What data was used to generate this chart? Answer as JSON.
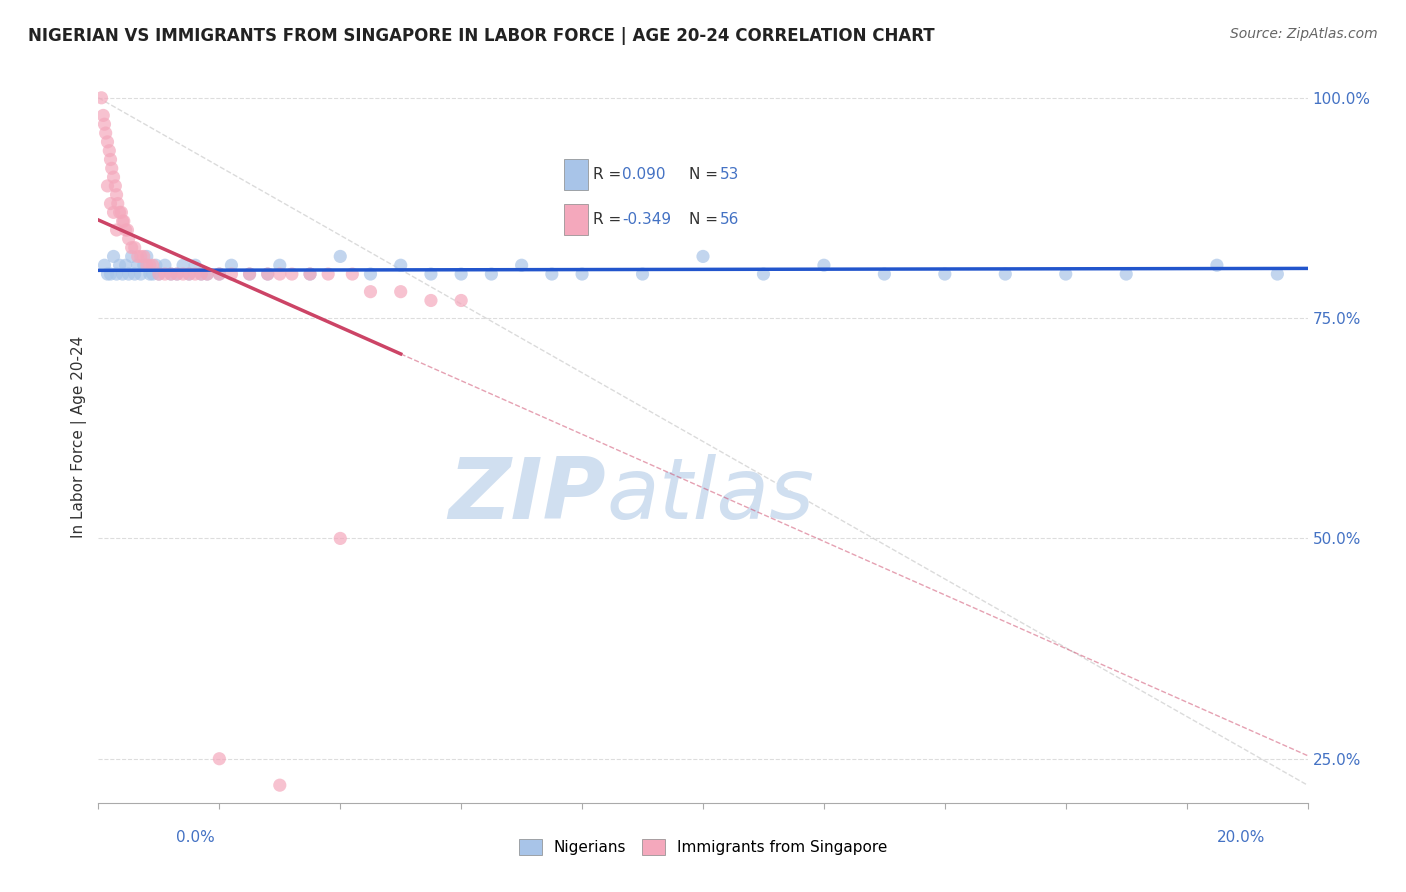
{
  "title": "NIGERIAN VS IMMIGRANTS FROM SINGAPORE IN LABOR FORCE | AGE 20-24 CORRELATION CHART",
  "source": "Source: ZipAtlas.com",
  "ylabel": "In Labor Force | Age 20-24",
  "xmin": 0.0,
  "xmax": 20.0,
  "ymin": 20.0,
  "ymax": 103.0,
  "yticks": [
    25.0,
    50.0,
    75.0,
    100.0
  ],
  "ytick_labels": [
    "25.0%",
    "50.0%",
    "75.0%",
    "100.0%"
  ],
  "nigerian_R": 0.09,
  "nigerian_N": 53,
  "singapore_R": -0.349,
  "singapore_N": 56,
  "nigerian_x": [
    0.1,
    0.15,
    0.2,
    0.25,
    0.3,
    0.35,
    0.4,
    0.45,
    0.5,
    0.55,
    0.6,
    0.65,
    0.7,
    0.75,
    0.8,
    0.85,
    0.9,
    0.95,
    1.0,
    1.1,
    1.2,
    1.3,
    1.4,
    1.5,
    1.6,
    1.7,
    1.8,
    2.0,
    2.2,
    2.5,
    2.8,
    3.0,
    3.5,
    4.0,
    4.5,
    5.0,
    5.5,
    6.0,
    6.5,
    7.0,
    7.5,
    8.0,
    9.0,
    10.0,
    11.0,
    12.0,
    13.0,
    14.0,
    15.0,
    16.0,
    17.0,
    18.5,
    19.5
  ],
  "nigerian_y": [
    81,
    80,
    80,
    82,
    80,
    81,
    80,
    81,
    80,
    82,
    80,
    81,
    80,
    81,
    82,
    80,
    80,
    81,
    80,
    81,
    80,
    80,
    81,
    80,
    81,
    80,
    80,
    80,
    81,
    80,
    80,
    81,
    80,
    82,
    80,
    81,
    80,
    80,
    80,
    81,
    80,
    80,
    80,
    82,
    80,
    81,
    80,
    80,
    80,
    80,
    80,
    81,
    80
  ],
  "singapore_x": [
    0.05,
    0.08,
    0.1,
    0.12,
    0.15,
    0.18,
    0.2,
    0.22,
    0.25,
    0.28,
    0.3,
    0.32,
    0.35,
    0.38,
    0.4,
    0.42,
    0.45,
    0.48,
    0.5,
    0.55,
    0.6,
    0.65,
    0.7,
    0.75,
    0.8,
    0.85,
    0.9,
    1.0,
    1.1,
    1.2,
    1.3,
    1.4,
    1.5,
    1.6,
    1.7,
    1.8,
    2.0,
    2.2,
    2.5,
    2.8,
    3.0,
    3.2,
    3.5,
    3.8,
    4.0,
    4.2,
    4.5,
    5.0,
    5.5,
    6.0,
    0.15,
    0.2,
    0.25,
    0.3,
    2.0,
    3.0
  ],
  "singapore_y": [
    100,
    98,
    97,
    96,
    95,
    94,
    93,
    92,
    91,
    90,
    89,
    88,
    87,
    87,
    86,
    86,
    85,
    85,
    84,
    83,
    83,
    82,
    82,
    82,
    81,
    81,
    81,
    80,
    80,
    80,
    80,
    80,
    80,
    80,
    80,
    80,
    80,
    80,
    80,
    80,
    80,
    80,
    80,
    80,
    50,
    80,
    78,
    78,
    77,
    77,
    90,
    88,
    87,
    85,
    25,
    22
  ],
  "nigerian_line_color": "#2255cc",
  "singapore_line_color": "#cc4466",
  "nigerian_scatter_color": "#a8c4e8",
  "singapore_scatter_color": "#f4a8bc",
  "diag_line_color": "#cccccc",
  "watermark_zip": "ZIP",
  "watermark_atlas": "atlas",
  "watermark_color": "#d0dff0",
  "background_color": "#ffffff",
  "grid_color": "#dddddd",
  "title_color": "#222222",
  "source_color": "#666666",
  "axis_label_color": "#4472c4",
  "ylabel_color": "#333333"
}
